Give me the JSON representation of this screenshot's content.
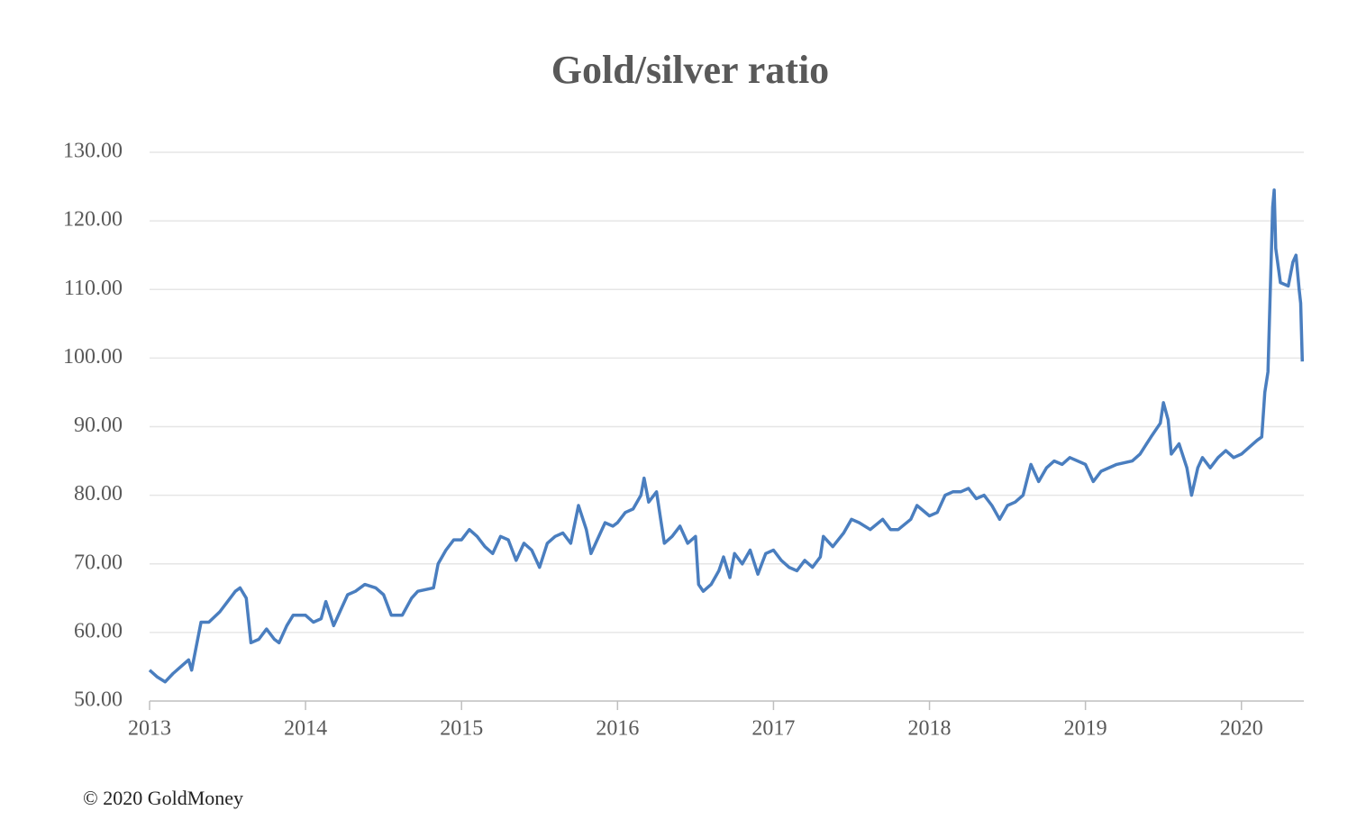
{
  "chart_data": {
    "type": "line",
    "title": "Gold/silver ratio",
    "source": "© 2020 GoldMoney",
    "x": [
      2013.0,
      2013.05,
      2013.1,
      2013.15,
      2013.2,
      2013.25,
      2013.27,
      2013.3,
      2013.33,
      2013.38,
      2013.45,
      2013.5,
      2013.55,
      2013.58,
      2013.62,
      2013.65,
      2013.7,
      2013.75,
      2013.8,
      2013.83,
      2013.88,
      2013.92,
      2014.0,
      2014.05,
      2014.1,
      2014.13,
      2014.18,
      2014.22,
      2014.27,
      2014.32,
      2014.38,
      2014.45,
      2014.5,
      2014.55,
      2014.62,
      2014.68,
      2014.72,
      2014.82,
      2014.85,
      2014.9,
      2014.95,
      2015.0,
      2015.05,
      2015.1,
      2015.15,
      2015.2,
      2015.25,
      2015.3,
      2015.35,
      2015.4,
      2015.45,
      2015.5,
      2015.55,
      2015.6,
      2015.65,
      2015.7,
      2015.75,
      2015.8,
      2015.83,
      2015.87,
      2015.92,
      2015.97,
      2016.0,
      2016.05,
      2016.1,
      2016.15,
      2016.17,
      2016.2,
      2016.25,
      2016.28,
      2016.3,
      2016.35,
      2016.4,
      2016.45,
      2016.5,
      2016.52,
      2016.55,
      2016.6,
      2016.65,
      2016.68,
      2016.72,
      2016.75,
      2016.8,
      2016.85,
      2016.9,
      2016.95,
      2017.0,
      2017.05,
      2017.1,
      2017.15,
      2017.2,
      2017.25,
      2017.3,
      2017.32,
      2017.38,
      2017.45,
      2017.5,
      2017.55,
      2017.62,
      2017.7,
      2017.75,
      2017.8,
      2017.88,
      2017.92,
      2018.0,
      2018.05,
      2018.1,
      2018.15,
      2018.2,
      2018.25,
      2018.3,
      2018.35,
      2018.4,
      2018.45,
      2018.5,
      2018.55,
      2018.6,
      2018.65,
      2018.7,
      2018.75,
      2018.8,
      2018.85,
      2018.9,
      2019.0,
      2019.05,
      2019.1,
      2019.2,
      2019.3,
      2019.35,
      2019.42,
      2019.48,
      2019.5,
      2019.53,
      2019.55,
      2019.6,
      2019.65,
      2019.68,
      2019.72,
      2019.75,
      2019.8,
      2019.85,
      2019.9,
      2019.95,
      2020.0,
      2020.05,
      2020.1,
      2020.13,
      2020.15,
      2020.17,
      2020.2,
      2020.21,
      2020.22,
      2020.25,
      2020.3,
      2020.33,
      2020.35,
      2020.37,
      2020.38,
      2020.39
    ],
    "series": [
      {
        "name": "Gold/silver ratio",
        "color": "#4a7ebf",
        "values": [
          54.5,
          53.5,
          52.8,
          54,
          55,
          56,
          54.5,
          58,
          61.5,
          61.5,
          63,
          64.5,
          66,
          66.5,
          65,
          58.5,
          59,
          60.5,
          59,
          58.5,
          61,
          62.5,
          62.5,
          61.5,
          62,
          64.5,
          61,
          63,
          65.5,
          66,
          67,
          66.5,
          65.5,
          62.5,
          62.5,
          65,
          66,
          66.5,
          70,
          72,
          73.5,
          73.5,
          75,
          74,
          72.5,
          71.5,
          74,
          73.5,
          70.5,
          73,
          72,
          69.5,
          73,
          74,
          74.5,
          73,
          78.5,
          75,
          71.5,
          73.5,
          76,
          75.5,
          76,
          77.5,
          78,
          80,
          82.5,
          79,
          80.5,
          76,
          73,
          74,
          75.5,
          73,
          74,
          67,
          66,
          67,
          69,
          71,
          68,
          71.5,
          70,
          72,
          68.5,
          71.5,
          72,
          70.5,
          69.5,
          69,
          70.5,
          69.5,
          71,
          74,
          72.5,
          74.5,
          76.5,
          76,
          75,
          76.5,
          75,
          75,
          76.5,
          78.5,
          77,
          77.5,
          80,
          80.5,
          80.5,
          81,
          79.5,
          80,
          78.5,
          76.5,
          78.5,
          79,
          80,
          84.5,
          82,
          84,
          85,
          84.5,
          85.5,
          84.5,
          82,
          83.5,
          84.5,
          85,
          86,
          88.5,
          90.5,
          93.5,
          91,
          86,
          87.5,
          84,
          80,
          84,
          85.5,
          84,
          85.5,
          86.5,
          85.5,
          86,
          87,
          88,
          88.5,
          95,
          98,
          122,
          124.5,
          116,
          111,
          110.5,
          114,
          115,
          110,
          108,
          99.5
        ]
      }
    ],
    "xlim": [
      2013,
      2020.4
    ],
    "xticks": [
      2013,
      2014,
      2015,
      2016,
      2017,
      2018,
      2019,
      2020
    ],
    "ylim": [
      50,
      130
    ],
    "yticks": [
      {
        "value": 50,
        "label": "50.00"
      },
      {
        "value": 60,
        "label": "60.00"
      },
      {
        "value": 70,
        "label": "70.00"
      },
      {
        "value": 80,
        "label": "80.00"
      },
      {
        "value": 90,
        "label": "90.00"
      },
      {
        "value": 100,
        "label": "100.00"
      },
      {
        "value": 110,
        "label": "110.00"
      },
      {
        "value": 120,
        "label": "120.00"
      },
      {
        "value": 130,
        "label": "130.00"
      }
    ],
    "grid": true
  }
}
